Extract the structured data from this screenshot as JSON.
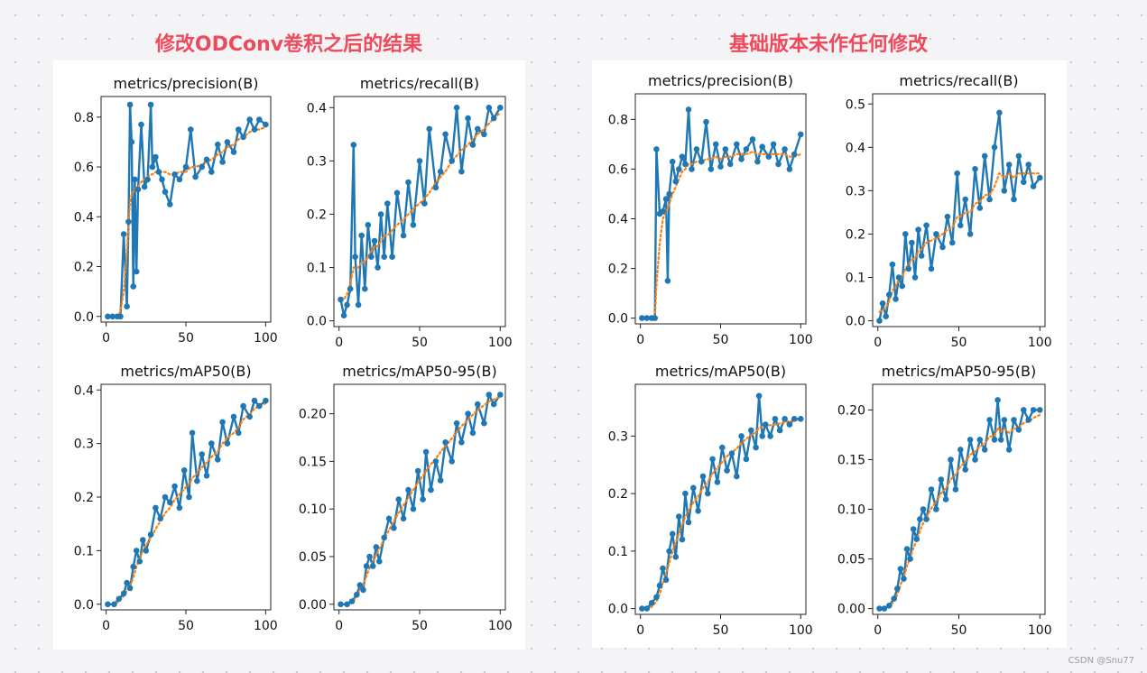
{
  "headings": {
    "left": "修改ODConv卷积之后的结果",
    "right": "基础版本未作任何修改",
    "color": "#ef4a5c"
  },
  "watermark": "CSDN @Snu77",
  "colors": {
    "series": "#1f77b4",
    "smooth": "#ff7f0e",
    "panel": "#ffffff"
  },
  "chart_data": [
    {
      "type": "line",
      "group": "left",
      "title": "metrics/precision(B)",
      "xlim": [
        0,
        100
      ],
      "ylim": [
        0,
        0.86
      ],
      "xticks": [
        0,
        50,
        100
      ],
      "yticks": [
        0.0,
        0.2,
        0.4,
        0.6,
        0.8
      ],
      "ytick_labels": [
        "0.0",
        "0.2",
        "0.4",
        "0.6",
        "0.8"
      ],
      "x": [
        1,
        4,
        7,
        9,
        11,
        13,
        14,
        15,
        16,
        17,
        18,
        19,
        20,
        22,
        24,
        26,
        28,
        29,
        31,
        33,
        35,
        37,
        40,
        43,
        46,
        50,
        53,
        56,
        60,
        63,
        66,
        70,
        73,
        76,
        80,
        83,
        86,
        90,
        93,
        96,
        100
      ],
      "series": [
        {
          "name": "",
          "values": [
            0.0,
            0.0,
            0.0,
            0.0,
            0.33,
            0.04,
            0.38,
            0.85,
            0.7,
            0.12,
            0.55,
            0.18,
            0.51,
            0.77,
            0.52,
            0.55,
            0.85,
            0.6,
            0.64,
            0.58,
            0.55,
            0.5,
            0.45,
            0.57,
            0.55,
            0.6,
            0.75,
            0.56,
            0.6,
            0.63,
            0.58,
            0.69,
            0.62,
            0.7,
            0.66,
            0.75,
            0.72,
            0.79,
            0.75,
            0.79,
            0.77
          ]
        },
        {
          "name": "",
          "values": [
            0.0,
            0.0,
            0.0,
            0.02,
            0.1,
            0.25,
            0.37,
            0.46,
            0.49,
            0.5,
            0.51,
            0.52,
            0.52,
            0.54,
            0.55,
            0.56,
            0.57,
            0.57,
            0.58,
            0.58,
            0.58,
            0.58,
            0.57,
            0.57,
            0.58,
            0.58,
            0.6,
            0.6,
            0.61,
            0.62,
            0.63,
            0.65,
            0.66,
            0.68,
            0.69,
            0.71,
            0.72,
            0.74,
            0.75,
            0.75,
            0.76
          ]
        }
      ]
    },
    {
      "type": "line",
      "group": "left",
      "title": "metrics/recall(B)",
      "xlim": [
        0,
        100
      ],
      "ylim": [
        0,
        0.41
      ],
      "xticks": [
        0,
        50,
        100
      ],
      "yticks": [
        0.0,
        0.1,
        0.2,
        0.3,
        0.4
      ],
      "ytick_labels": [
        "0.0",
        "0.1",
        "0.2",
        "0.3",
        "0.4"
      ],
      "x": [
        1,
        3,
        5,
        7,
        9,
        10,
        12,
        14,
        16,
        18,
        20,
        22,
        24,
        26,
        28,
        30,
        33,
        36,
        40,
        43,
        46,
        50,
        53,
        56,
        60,
        63,
        66,
        70,
        73,
        76,
        80,
        83,
        86,
        90,
        93,
        96,
        100
      ],
      "series": [
        {
          "name": "",
          "values": [
            0.04,
            0.01,
            0.03,
            0.06,
            0.33,
            0.12,
            0.03,
            0.16,
            0.06,
            0.18,
            0.12,
            0.15,
            0.1,
            0.2,
            0.12,
            0.22,
            0.12,
            0.24,
            0.16,
            0.26,
            0.18,
            0.3,
            0.22,
            0.36,
            0.25,
            0.28,
            0.35,
            0.3,
            0.4,
            0.28,
            0.38,
            0.33,
            0.36,
            0.35,
            0.4,
            0.38,
            0.4
          ]
        },
        {
          "name": "",
          "values": [
            0.04,
            0.04,
            0.05,
            0.07,
            0.1,
            0.1,
            0.1,
            0.11,
            0.11,
            0.12,
            0.13,
            0.14,
            0.14,
            0.15,
            0.16,
            0.16,
            0.17,
            0.18,
            0.19,
            0.2,
            0.21,
            0.22,
            0.23,
            0.24,
            0.26,
            0.27,
            0.28,
            0.3,
            0.31,
            0.32,
            0.33,
            0.34,
            0.35,
            0.36,
            0.37,
            0.38,
            0.39
          ]
        }
      ]
    },
    {
      "type": "line",
      "group": "left",
      "title": "metrics/mAP50(B)",
      "xlim": [
        0,
        100
      ],
      "ylim": [
        0,
        0.4
      ],
      "xticks": [
        0,
        50,
        100
      ],
      "yticks": [
        0.0,
        0.1,
        0.2,
        0.3,
        0.4
      ],
      "ytick_labels": [
        "0.0",
        "0.1",
        "0.2",
        "0.3",
        "0.4"
      ],
      "x": [
        1,
        5,
        8,
        11,
        13,
        15,
        17,
        19,
        21,
        23,
        25,
        28,
        31,
        34,
        37,
        40,
        43,
        46,
        49,
        52,
        54,
        57,
        60,
        63,
        66,
        70,
        73,
        76,
        80,
        83,
        86,
        90,
        93,
        96,
        100
      ],
      "series": [
        {
          "name": "",
          "values": [
            0.0,
            0.0,
            0.01,
            0.02,
            0.04,
            0.03,
            0.07,
            0.1,
            0.08,
            0.12,
            0.1,
            0.13,
            0.18,
            0.16,
            0.2,
            0.19,
            0.22,
            0.18,
            0.25,
            0.2,
            0.32,
            0.23,
            0.28,
            0.24,
            0.3,
            0.27,
            0.34,
            0.3,
            0.35,
            0.32,
            0.37,
            0.35,
            0.38,
            0.37,
            0.38
          ]
        },
        {
          "name": "",
          "values": [
            0.0,
            0.0,
            0.005,
            0.015,
            0.025,
            0.035,
            0.05,
            0.07,
            0.085,
            0.1,
            0.11,
            0.125,
            0.14,
            0.155,
            0.17,
            0.18,
            0.195,
            0.205,
            0.215,
            0.225,
            0.235,
            0.245,
            0.255,
            0.265,
            0.275,
            0.285,
            0.3,
            0.31,
            0.32,
            0.33,
            0.345,
            0.355,
            0.365,
            0.37,
            0.375
          ]
        }
      ]
    },
    {
      "type": "line",
      "group": "left",
      "title": "metrics/mAP50-95(B)",
      "xlim": [
        0,
        100
      ],
      "ylim": [
        0,
        0.225
      ],
      "xticks": [
        0,
        50,
        100
      ],
      "yticks": [
        0.0,
        0.05,
        0.1,
        0.15,
        0.2
      ],
      "ytick_labels": [
        "0.00",
        "0.05",
        "0.10",
        "0.15",
        "0.20"
      ],
      "x": [
        1,
        5,
        8,
        11,
        13,
        15,
        17,
        19,
        21,
        23,
        25,
        28,
        31,
        34,
        37,
        40,
        43,
        46,
        49,
        52,
        54,
        57,
        60,
        63,
        66,
        70,
        73,
        76,
        80,
        83,
        86,
        90,
        93,
        96,
        100
      ],
      "series": [
        {
          "name": "",
          "values": [
            0.0,
            0.0,
            0.003,
            0.01,
            0.02,
            0.015,
            0.04,
            0.05,
            0.04,
            0.06,
            0.045,
            0.07,
            0.09,
            0.08,
            0.11,
            0.09,
            0.12,
            0.1,
            0.14,
            0.11,
            0.16,
            0.12,
            0.15,
            0.13,
            0.17,
            0.15,
            0.19,
            0.17,
            0.2,
            0.18,
            0.21,
            0.19,
            0.22,
            0.21,
            0.22
          ]
        },
        {
          "name": "",
          "values": [
            0.0,
            0.0,
            0.002,
            0.008,
            0.015,
            0.02,
            0.03,
            0.038,
            0.045,
            0.052,
            0.058,
            0.068,
            0.078,
            0.087,
            0.096,
            0.104,
            0.112,
            0.12,
            0.128,
            0.135,
            0.14,
            0.147,
            0.153,
            0.16,
            0.166,
            0.174,
            0.181,
            0.187,
            0.194,
            0.199,
            0.204,
            0.209,
            0.213,
            0.215,
            0.218
          ]
        }
      ]
    },
    {
      "type": "line",
      "group": "right",
      "title": "metrics/precision(B)",
      "xlim": [
        0,
        100
      ],
      "ylim": [
        0,
        0.88
      ],
      "xticks": [
        0,
        50,
        100
      ],
      "yticks": [
        0.0,
        0.2,
        0.4,
        0.6,
        0.8
      ],
      "ytick_labels": [
        "0.0",
        "0.2",
        "0.4",
        "0.6",
        "0.8"
      ],
      "x": [
        1,
        4,
        7,
        9,
        10,
        12,
        14,
        16,
        17,
        18,
        20,
        22,
        24,
        26,
        28,
        30,
        32,
        35,
        38,
        41,
        44,
        47,
        50,
        53,
        56,
        60,
        63,
        66,
        70,
        73,
        76,
        80,
        83,
        86,
        90,
        93,
        96,
        100
      ],
      "series": [
        {
          "name": "",
          "values": [
            0.0,
            0.0,
            0.0,
            0.0,
            0.68,
            0.42,
            0.43,
            0.48,
            0.15,
            0.5,
            0.63,
            0.55,
            0.6,
            0.65,
            0.62,
            0.84,
            0.6,
            0.68,
            0.63,
            0.79,
            0.6,
            0.7,
            0.61,
            0.68,
            0.62,
            0.7,
            0.64,
            0.68,
            0.72,
            0.63,
            0.69,
            0.65,
            0.7,
            0.62,
            0.68,
            0.6,
            0.66,
            0.74
          ]
        },
        {
          "name": "",
          "values": [
            0.0,
            0.0,
            0.0,
            0.0,
            0.13,
            0.3,
            0.4,
            0.43,
            0.44,
            0.46,
            0.5,
            0.53,
            0.56,
            0.59,
            0.6,
            0.62,
            0.62,
            0.63,
            0.63,
            0.64,
            0.64,
            0.65,
            0.64,
            0.65,
            0.65,
            0.66,
            0.66,
            0.66,
            0.67,
            0.66,
            0.66,
            0.66,
            0.66,
            0.66,
            0.66,
            0.65,
            0.65,
            0.66
          ]
        }
      ]
    },
    {
      "type": "line",
      "group": "right",
      "title": "metrics/recall(B)",
      "xlim": [
        0,
        100
      ],
      "ylim": [
        0,
        0.51
      ],
      "xticks": [
        0,
        50,
        100
      ],
      "yticks": [
        0.0,
        0.1,
        0.2,
        0.3,
        0.4,
        0.5
      ],
      "ytick_labels": [
        "0.0",
        "0.1",
        "0.2",
        "0.3",
        "0.4",
        "0.5"
      ],
      "x": [
        1,
        3,
        5,
        7,
        9,
        11,
        13,
        15,
        17,
        19,
        21,
        23,
        25,
        27,
        30,
        33,
        36,
        40,
        43,
        46,
        49,
        51,
        54,
        57,
        60,
        63,
        66,
        69,
        72,
        75,
        78,
        81,
        84,
        87,
        90,
        93,
        96,
        100
      ],
      "series": [
        {
          "name": "",
          "values": [
            0.0,
            0.04,
            0.01,
            0.06,
            0.13,
            0.05,
            0.1,
            0.08,
            0.2,
            0.12,
            0.18,
            0.1,
            0.21,
            0.15,
            0.22,
            0.12,
            0.2,
            0.17,
            0.24,
            0.18,
            0.34,
            0.22,
            0.28,
            0.2,
            0.35,
            0.26,
            0.38,
            0.28,
            0.4,
            0.48,
            0.3,
            0.36,
            0.28,
            0.38,
            0.32,
            0.36,
            0.31,
            0.33
          ]
        },
        {
          "name": "",
          "values": [
            0.02,
            0.025,
            0.03,
            0.045,
            0.07,
            0.08,
            0.095,
            0.1,
            0.12,
            0.13,
            0.14,
            0.145,
            0.16,
            0.165,
            0.18,
            0.185,
            0.19,
            0.2,
            0.21,
            0.215,
            0.24,
            0.24,
            0.25,
            0.25,
            0.27,
            0.275,
            0.29,
            0.29,
            0.31,
            0.34,
            0.33,
            0.34,
            0.33,
            0.34,
            0.34,
            0.34,
            0.34,
            0.34
          ]
        }
      ]
    },
    {
      "type": "line",
      "group": "right",
      "title": "metrics/mAP50(B)",
      "xlim": [
        0,
        100
      ],
      "ylim": [
        0,
        0.38
      ],
      "xticks": [
        0,
        50,
        100
      ],
      "yticks": [
        0.0,
        0.1,
        0.2,
        0.3
      ],
      "ytick_labels": [
        "0.0",
        "0.1",
        "0.2",
        "0.3"
      ],
      "x": [
        1,
        4,
        7,
        10,
        12,
        14,
        16,
        18,
        20,
        22,
        24,
        26,
        28,
        30,
        33,
        36,
        39,
        42,
        45,
        48,
        51,
        54,
        57,
        60,
        63,
        66,
        69,
        72,
        74,
        76,
        78,
        81,
        84,
        87,
        90,
        93,
        96,
        100
      ],
      "series": [
        {
          "name": "",
          "values": [
            0.0,
            0.0,
            0.01,
            0.02,
            0.04,
            0.07,
            0.05,
            0.1,
            0.13,
            0.09,
            0.16,
            0.12,
            0.2,
            0.15,
            0.21,
            0.17,
            0.23,
            0.2,
            0.26,
            0.22,
            0.28,
            0.24,
            0.27,
            0.23,
            0.3,
            0.26,
            0.31,
            0.28,
            0.37,
            0.3,
            0.32,
            0.3,
            0.33,
            0.31,
            0.33,
            0.32,
            0.33,
            0.33
          ]
        },
        {
          "name": "",
          "values": [
            0.0,
            0.0,
            0.003,
            0.012,
            0.025,
            0.045,
            0.06,
            0.08,
            0.1,
            0.115,
            0.13,
            0.145,
            0.16,
            0.17,
            0.185,
            0.195,
            0.21,
            0.22,
            0.235,
            0.245,
            0.255,
            0.265,
            0.272,
            0.278,
            0.288,
            0.295,
            0.302,
            0.306,
            0.315,
            0.316,
            0.318,
            0.319,
            0.32,
            0.322,
            0.324,
            0.326,
            0.327,
            0.33
          ]
        }
      ]
    },
    {
      "type": "line",
      "group": "right",
      "title": "metrics/mAP50-95(B)",
      "xlim": [
        0,
        100
      ],
      "ylim": [
        0,
        0.22
      ],
      "xticks": [
        0,
        50,
        100
      ],
      "yticks": [
        0.0,
        0.05,
        0.1,
        0.15,
        0.2
      ],
      "ytick_labels": [
        "0.00",
        "0.05",
        "0.10",
        "0.15",
        "0.20"
      ],
      "x": [
        1,
        4,
        7,
        10,
        12,
        14,
        16,
        18,
        20,
        22,
        24,
        26,
        28,
        30,
        33,
        36,
        39,
        42,
        45,
        48,
        51,
        54,
        57,
        60,
        63,
        66,
        69,
        72,
        74,
        76,
        78,
        81,
        84,
        87,
        90,
        93,
        96,
        100
      ],
      "series": [
        {
          "name": "",
          "values": [
            0.0,
            0.0,
            0.003,
            0.01,
            0.02,
            0.04,
            0.03,
            0.06,
            0.05,
            0.08,
            0.07,
            0.09,
            0.1,
            0.09,
            0.12,
            0.1,
            0.13,
            0.11,
            0.15,
            0.12,
            0.16,
            0.14,
            0.17,
            0.15,
            0.17,
            0.16,
            0.19,
            0.17,
            0.21,
            0.17,
            0.19,
            0.16,
            0.19,
            0.18,
            0.2,
            0.19,
            0.2,
            0.2
          ]
        },
        {
          "name": "",
          "values": [
            0.0,
            0.0,
            0.002,
            0.007,
            0.014,
            0.024,
            0.032,
            0.043,
            0.051,
            0.061,
            0.069,
            0.078,
            0.086,
            0.092,
            0.101,
            0.108,
            0.116,
            0.121,
            0.13,
            0.135,
            0.143,
            0.148,
            0.155,
            0.158,
            0.163,
            0.166,
            0.173,
            0.174,
            0.182,
            0.178,
            0.181,
            0.177,
            0.181,
            0.182,
            0.187,
            0.188,
            0.192,
            0.195
          ]
        }
      ]
    }
  ]
}
